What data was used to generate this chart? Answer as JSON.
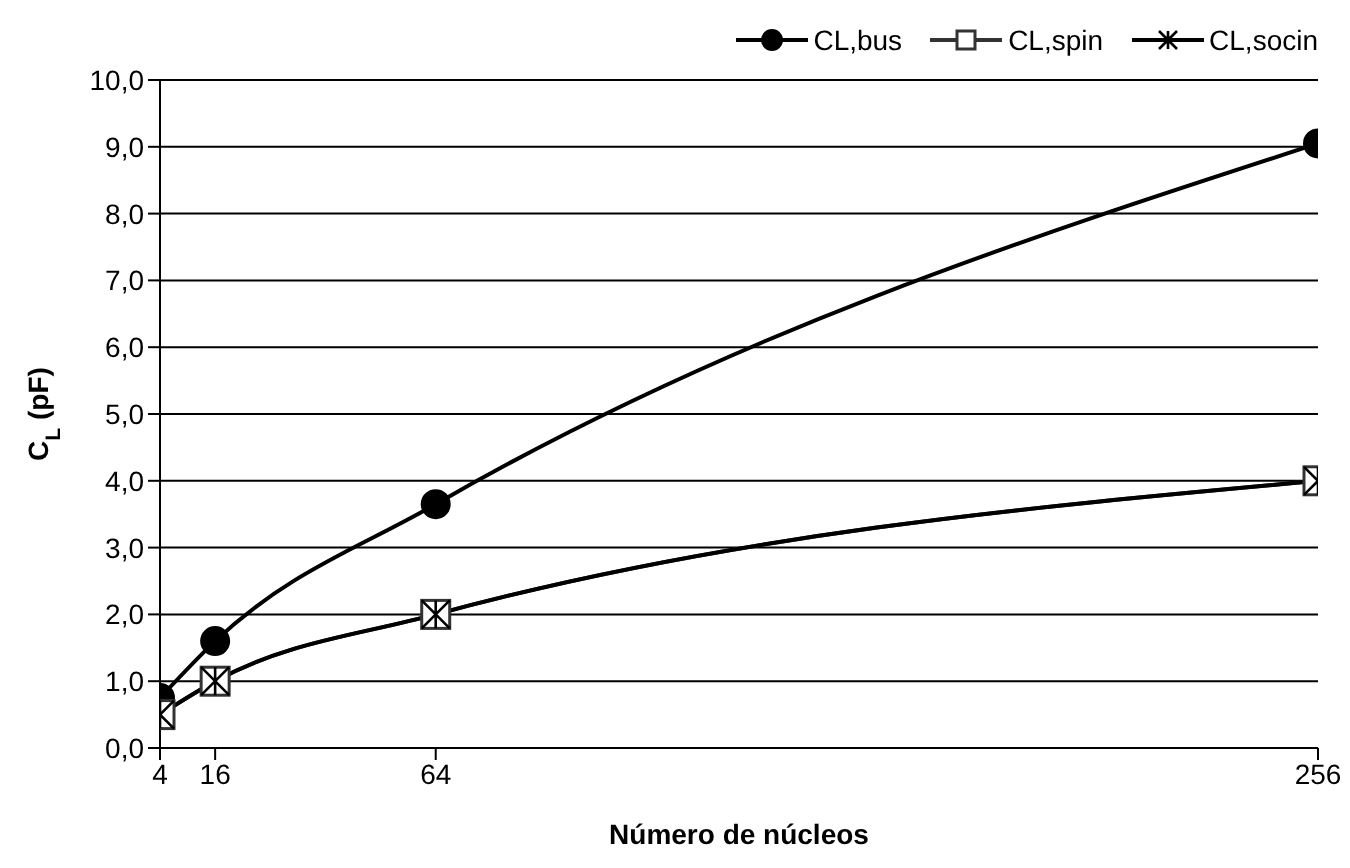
{
  "chart_data": {
    "type": "line",
    "xlabel": "Número de núcleos",
    "ylabel": "C$_{L}$ (pF)",
    "x": [
      4,
      16,
      64,
      256
    ],
    "series": [
      {
        "name": "CL,bus",
        "color": "#000000",
        "marker": "circle",
        "values": [
          0.75,
          1.6,
          3.65,
          9.05
        ]
      },
      {
        "name": "CL,spin",
        "color": "#333333",
        "marker": "square",
        "values": [
          0.5,
          1.0,
          2.0,
          4.0
        ]
      },
      {
        "name": "CL,socin",
        "color": "#000000",
        "marker": "cross",
        "values": [
          0.5,
          1.0,
          2.0,
          4.0
        ]
      }
    ],
    "xlim": [
      4,
      256
    ],
    "xticks": [
      4,
      16,
      64,
      256
    ],
    "ylim": [
      0,
      10
    ],
    "yticks": [
      {
        "value": 0,
        "label": "0,0"
      },
      {
        "value": 1,
        "label": "1,0"
      },
      {
        "value": 2,
        "label": "2,0"
      },
      {
        "value": 3,
        "label": "3,0"
      },
      {
        "value": 4,
        "label": "4,0"
      },
      {
        "value": 5,
        "label": "5,0"
      },
      {
        "value": 6,
        "label": "6,0"
      },
      {
        "value": 7,
        "label": "7,0"
      },
      {
        "value": 8,
        "label": "8,0"
      },
      {
        "value": 9,
        "label": "9,0"
      },
      {
        "value": 10,
        "label": "10,0"
      }
    ],
    "grid": "y",
    "legend": "top right",
    "line_style": "solid"
  }
}
